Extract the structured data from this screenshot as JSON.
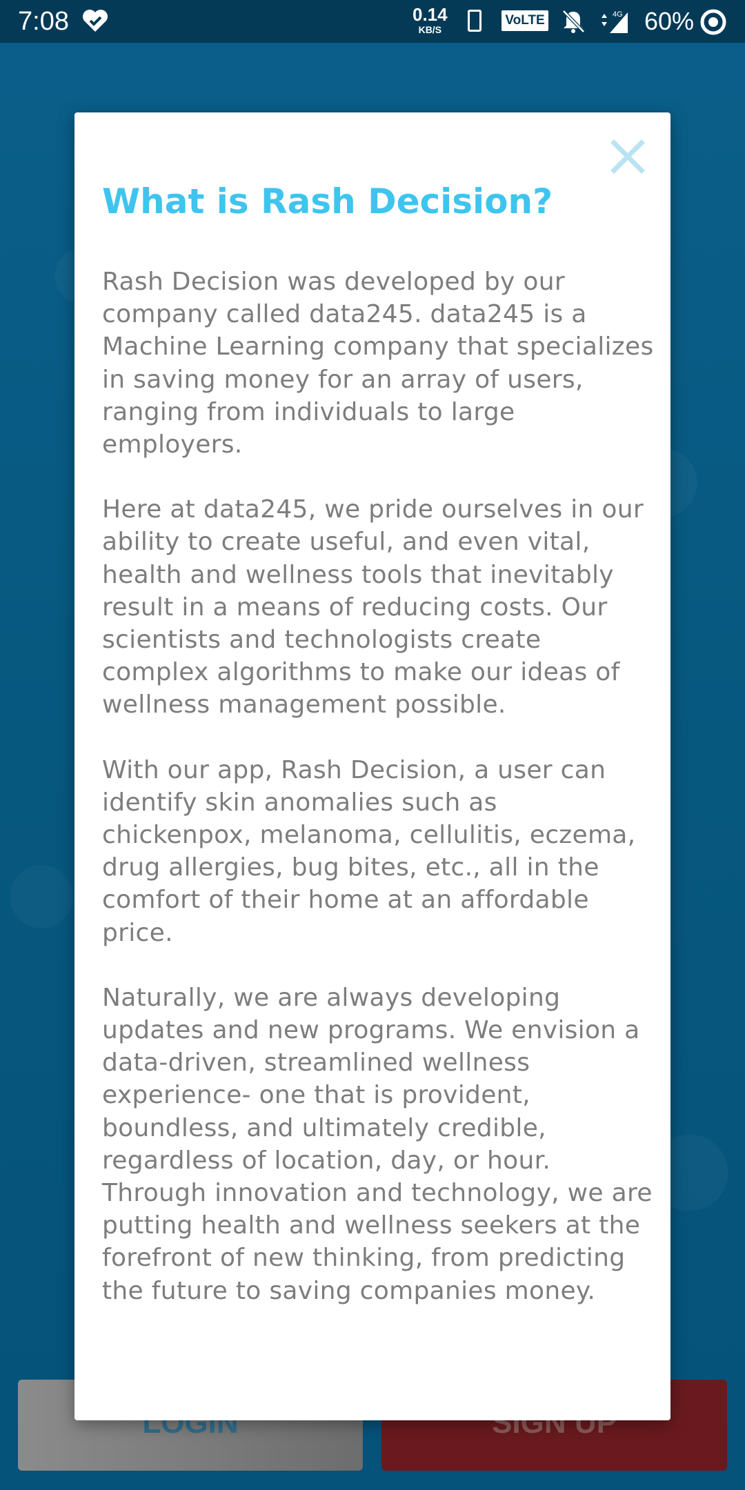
{
  "status_bar": {
    "time": "7:08",
    "net_speed": "0.14",
    "net_speed_unit": "KB/S",
    "volte": "VoLTE",
    "network": "4G",
    "battery": "60%"
  },
  "background": {
    "login_label": "LOGIN",
    "signup_label": "SIGN UP"
  },
  "modal": {
    "title": "What is Rash Decision?",
    "close_icon": "close-icon",
    "paragraphs": [
      "Rash Decision was developed by our company called data245. data245 is a Machine Learning company that specializes in saving money for an array of users, ranging from individuals to large employers.",
      "Here at data245, we pride ourselves in our ability to create useful, and even vital, health and wellness tools that inevitably result in a means of reducing costs. Our scientists and technologists create complex algorithms to make our ideas of wellness management possible.",
      "With our app, Rash Decision, a user can identify skin anomalies such as chickenpox, melanoma, cellulitis, eczema, drug allergies, bug bites, etc., all in the comfort of their home at an affordable price.",
      "Naturally, we are always developing updates and new programs. We envision a data-driven, streamlined wellness experience- one that is provident, boundless, and ultimately credible, regardless of location, day, or hour. Through innovation and technology, we are putting health and wellness seekers at the forefront of new thinking, from predicting the future to saving companies money."
    ]
  },
  "colors": {
    "title": "#3fc4ee",
    "body_text": "#7d7d7d",
    "close_icon": "#b9e3f2",
    "background": "#07547c",
    "signup": "#6a1a1e"
  }
}
